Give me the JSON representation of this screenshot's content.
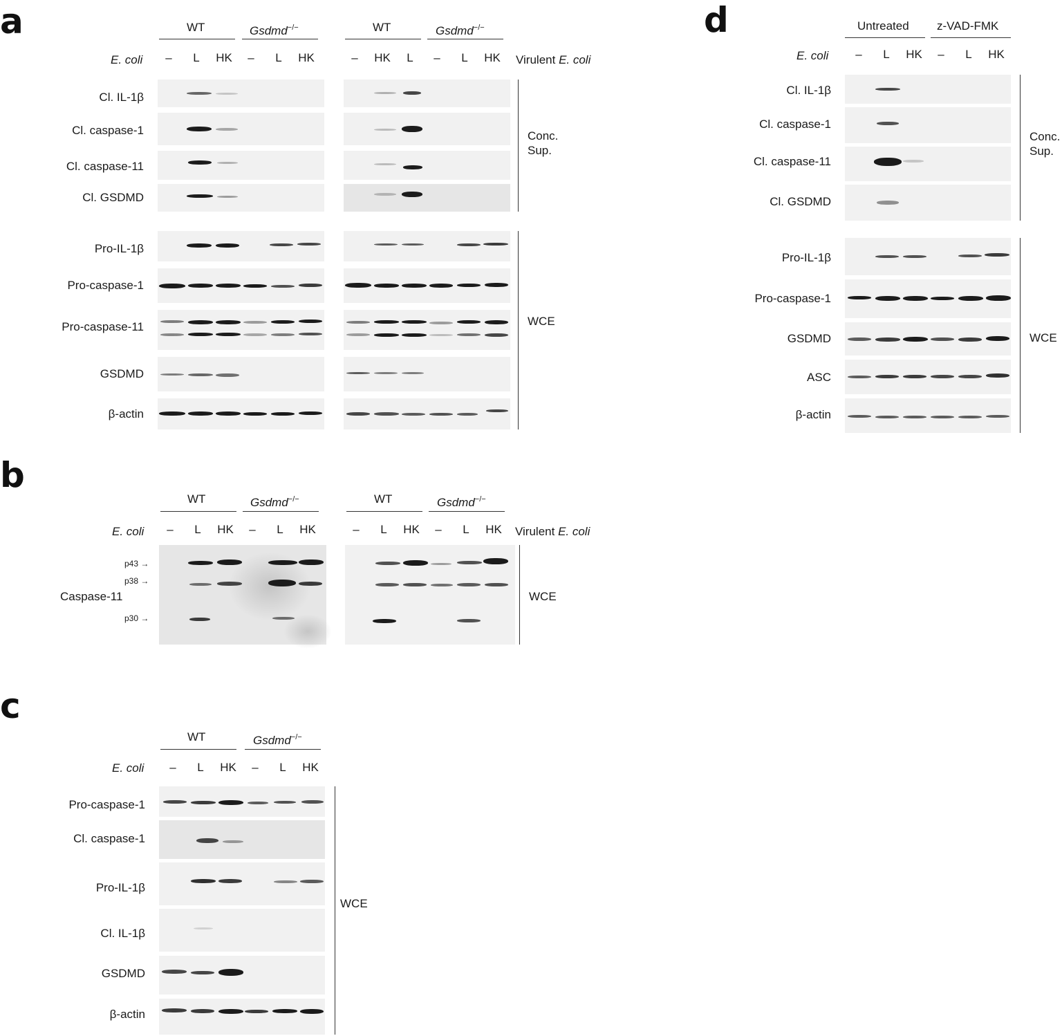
{
  "panels": {
    "a": {
      "letter": "a",
      "blots": [
        {
          "groups": [
            "WT",
            "Gsdmd"
          ],
          "lanes": [
            "–",
            "L",
            "HK",
            "–",
            "L",
            "HK"
          ],
          "treatment_label": "E. coli",
          "rows": [
            "Cl. IL-1β",
            "Cl. caspase-1",
            "Cl. caspase-11",
            "Cl. GSDMD",
            "Pro-IL-1β",
            "Pro-caspase-1",
            "Pro-caspase-11",
            "GSDMD",
            "β-actin"
          ]
        },
        {
          "groups": [
            "WT",
            "Gsdmd"
          ],
          "lanes": [
            "–",
            "HK",
            "L",
            "–",
            "L",
            "HK"
          ],
          "treatment_label_prefix": "Virulent ",
          "treatment_label_italic": "E. coli"
        }
      ],
      "brackets": [
        "Conc.",
        "Sup.",
        "WCE"
      ]
    },
    "b": {
      "letter": "b",
      "groups": [
        "WT",
        "Gsdmd",
        "WT",
        "Gsdmd"
      ],
      "lanes_left": [
        "–",
        "L",
        "HK",
        "–",
        "L",
        "HK"
      ],
      "lanes_right": [
        "–",
        "L",
        "HK",
        "–",
        "L",
        "HK"
      ],
      "treatment_label": "E. coli",
      "virulent_prefix": "Virulent ",
      "virulent_italic": "E. coli",
      "row_label": "Caspase-11",
      "markers": [
        "p43",
        "p38",
        "p30"
      ],
      "bracket": "WCE"
    },
    "c": {
      "letter": "c",
      "groups": [
        "WT",
        "Gsdmd"
      ],
      "lanes": [
        "–",
        "L",
        "HK",
        "–",
        "L",
        "HK"
      ],
      "treatment_label": "E. coli",
      "rows": [
        "Pro-caspase-1",
        "Cl. caspase-1",
        "Pro-IL-1β",
        "Cl. IL-1β",
        "GSDMD",
        "β-actin"
      ],
      "bracket": "WCE"
    },
    "d": {
      "letter": "d",
      "groups": [
        "Untreated",
        "z-VAD-FMK"
      ],
      "lanes": [
        "–",
        "L",
        "HK",
        "–",
        "L",
        "HK"
      ],
      "treatment_label": "E. coli",
      "rows": [
        "Cl. IL-1β",
        "Cl. caspase-1",
        "Cl. caspase-11",
        "Cl. GSDMD",
        "Pro-IL-1β",
        "Pro-caspase-1",
        "GSDMD",
        "ASC",
        "β-actin"
      ],
      "brackets": [
        "Conc.",
        "Sup.",
        "WCE"
      ]
    }
  },
  "genotype_superscript": "−/−"
}
